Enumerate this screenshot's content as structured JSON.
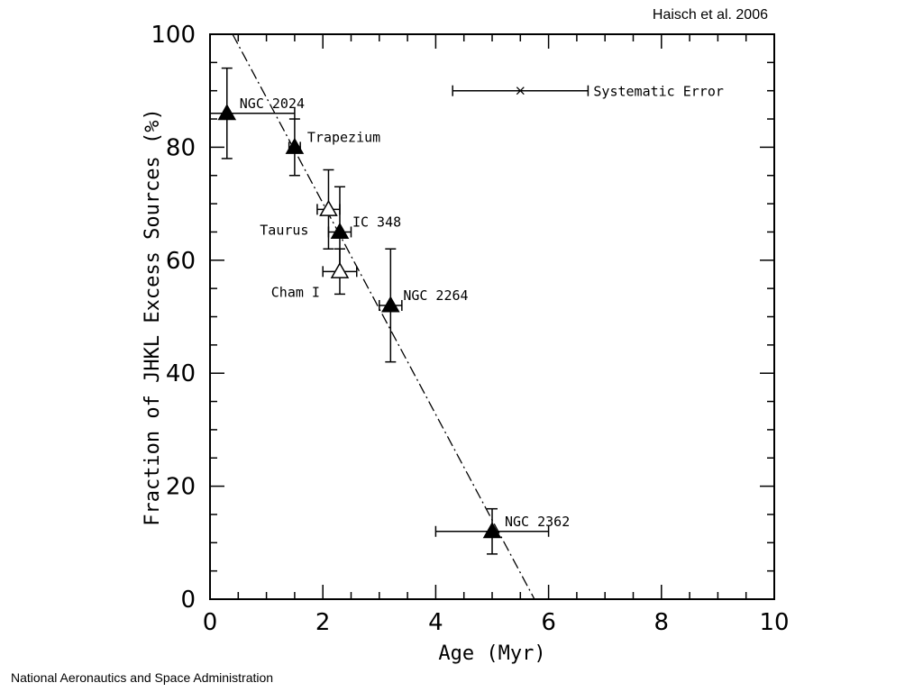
{
  "credits": {
    "top": "Haisch et al. 2006",
    "bottom": "National Aeronautics and Space Administration"
  },
  "chart_data": {
    "type": "scatter",
    "xlabel": "Age (Myr)",
    "ylabel": "Fraction of JHKL Excess Sources (%)",
    "xlim": [
      0,
      10
    ],
    "ylim": [
      0,
      100
    ],
    "x_ticks": [
      0,
      2,
      4,
      6,
      8,
      10
    ],
    "y_ticks": [
      0,
      20,
      40,
      60,
      80,
      100
    ],
    "grid": false,
    "points": [
      {
        "name": "NGC 2024",
        "x": 0.3,
        "y": 86,
        "x_err": [
          0.3,
          1.2
        ],
        "y_err": [
          8,
          8
        ],
        "filled": true,
        "label_side": "right"
      },
      {
        "name": "Trapezium",
        "x": 1.5,
        "y": 80,
        "x_err": [
          0.1,
          0.1
        ],
        "y_err": [
          5,
          5
        ],
        "filled": true,
        "label_side": "right"
      },
      {
        "name": "Taurus",
        "x": 2.1,
        "y": 69,
        "x_err": [
          0.2,
          0.2
        ],
        "y_err": [
          7,
          7
        ],
        "filled": false,
        "label_side": "left"
      },
      {
        "name": "IC 348",
        "x": 2.3,
        "y": 65,
        "x_err": [
          0.2,
          0.2
        ],
        "y_err": [
          8,
          8
        ],
        "filled": true,
        "label_side": "right"
      },
      {
        "name": "Cham I",
        "x": 2.3,
        "y": 58,
        "x_err": [
          0.3,
          0.3
        ],
        "y_err": [
          4,
          4
        ],
        "filled": false,
        "label_side": "left"
      },
      {
        "name": "NGC 2264",
        "x": 3.2,
        "y": 52,
        "x_err": [
          0.2,
          0.2
        ],
        "y_err": [
          10,
          10
        ],
        "filled": true,
        "label_side": "right"
      },
      {
        "name": "NGC 2362",
        "x": 5.0,
        "y": 12,
        "x_err": [
          1.0,
          1.0
        ],
        "y_err": [
          4,
          4
        ],
        "filled": true,
        "label_side": "right"
      }
    ],
    "systematic_error": {
      "label": "Systematic Error",
      "x": 5.5,
      "y": 90,
      "x_err": [
        1.2,
        1.2
      ],
      "marker": "x"
    },
    "fit_line": {
      "style": "dash-dot",
      "x": [
        0.4,
        5.75
      ],
      "y": [
        100,
        0
      ]
    }
  }
}
